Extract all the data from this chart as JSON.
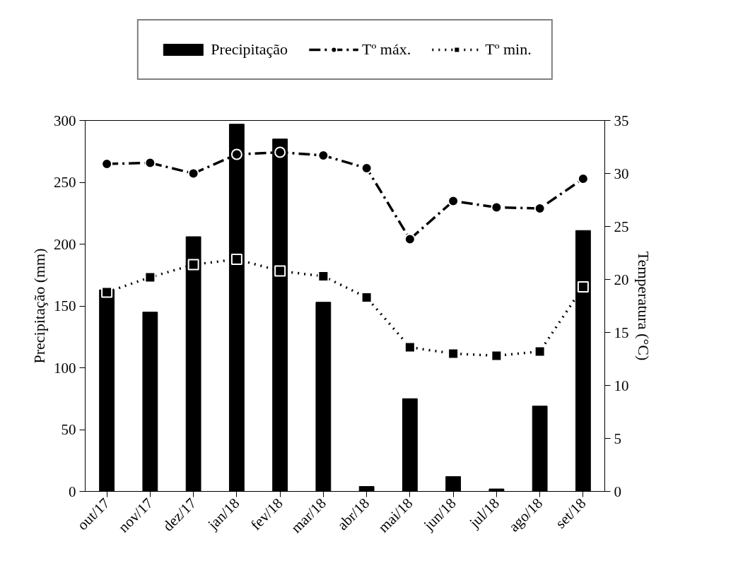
{
  "chart_data": {
    "type": "bar",
    "categories": [
      "out/17",
      "nov/17",
      "dez/17",
      "jan/18",
      "fev/18",
      "mar/18",
      "abr/18",
      "mai/18",
      "jun/18",
      "jul/18",
      "ago/18",
      "set/18"
    ],
    "ylabel": "Precipitação (mm)",
    "y2label": "Temperatura (°C)",
    "ylim": [
      0,
      300
    ],
    "yticks": [
      0,
      50,
      100,
      150,
      200,
      250,
      300
    ],
    "y2lim": [
      0,
      35
    ],
    "y2ticks": [
      0,
      5,
      10,
      15,
      20,
      25,
      30,
      35
    ],
    "grid": false,
    "legend": "top",
    "series": [
      {
        "name": "Precipitação",
        "color": "#000000",
        "values": [
          163,
          145,
          206,
          297,
          285,
          153,
          4,
          75,
          12,
          2,
          69,
          211
        ]
      },
      {
        "name": "Tº máx.",
        "type": "line",
        "axis": "y2",
        "color": "#000000",
        "marker": "circle",
        "line_style": "dashed",
        "values": [
          30.9,
          31.0,
          30.0,
          31.8,
          32.0,
          31.7,
          30.5,
          23.8,
          27.4,
          26.8,
          26.7,
          29.5
        ]
      },
      {
        "name": "Tº min.",
        "type": "line",
        "axis": "y2",
        "color": "#000000",
        "marker": "square",
        "line_style": "dotted",
        "values": [
          18.8,
          20.2,
          21.4,
          21.9,
          20.8,
          20.3,
          18.3,
          13.6,
          13.0,
          12.8,
          13.2,
          19.3
        ]
      }
    ]
  }
}
